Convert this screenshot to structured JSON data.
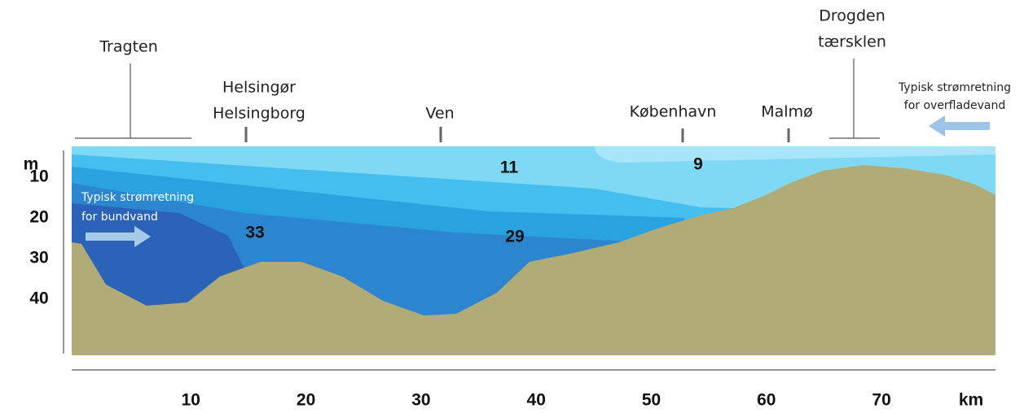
{
  "places": {
    "tragten": "Tragten",
    "helsingor": "Helsingør",
    "helsingborg": "Helsingborg",
    "ven": "Ven",
    "kobenhavn": "København",
    "malmo": "Malmø",
    "drogden": "Drogden",
    "taersklen": "tærsklen"
  },
  "surface_current": {
    "line1": "Typisk strømretning",
    "line2": "for overfladevand"
  },
  "bottom_current": {
    "line1": "Typisk strømretning",
    "line2": "for bundvand"
  },
  "salinity": {
    "a": "11",
    "b": "9",
    "c": "33",
    "d": "29"
  },
  "axes": {
    "y_unit": "m",
    "y_ticks": [
      10,
      20,
      30,
      40
    ],
    "x_unit": "km",
    "x_ticks": [
      10,
      20,
      30,
      40,
      50,
      60,
      70
    ]
  }
}
